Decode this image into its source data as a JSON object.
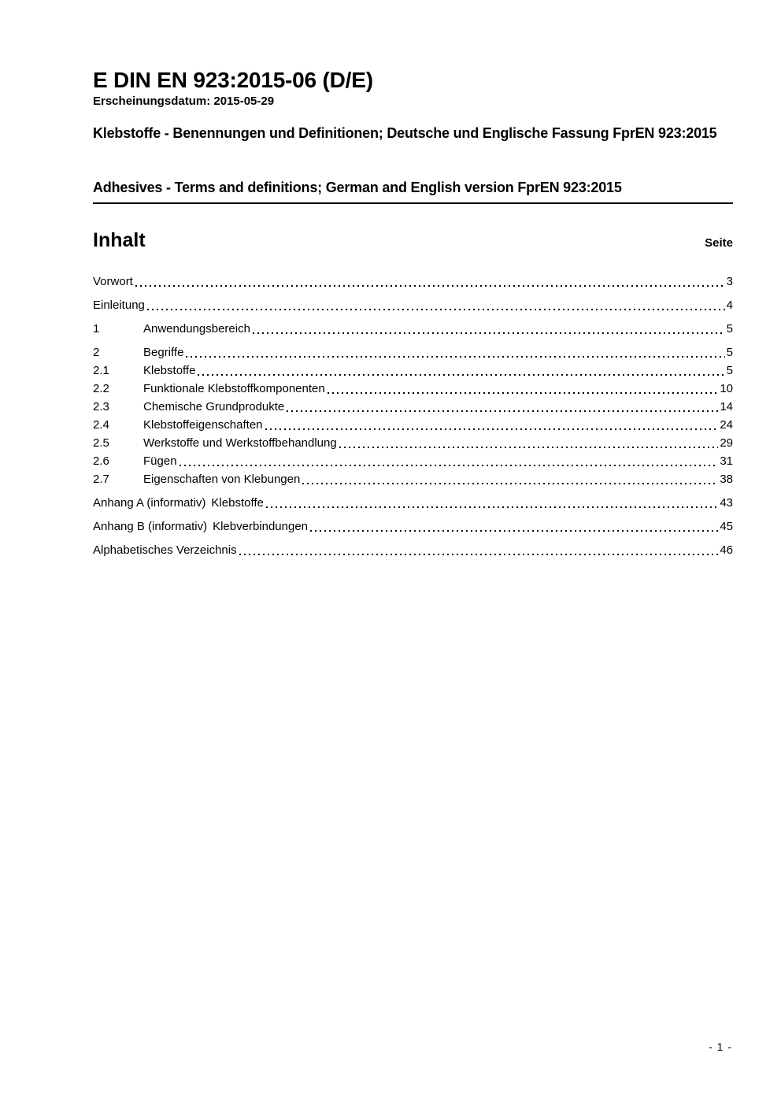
{
  "colors": {
    "text": "#000000",
    "background": "#ffffff",
    "rule": "#000000"
  },
  "header": {
    "doc_code": "E DIN EN 923:2015-06 (D/E)",
    "release_date": "Erscheinungsdatum: 2015-05-29",
    "title_de": "Klebstoffe - Benennungen und Definitionen; Deutsche und Englische Fassung FprEN 923:2015",
    "title_en": "Adhesives - Terms and definitions; German and English version FprEN 923:2015"
  },
  "toc": {
    "heading": "Inhalt",
    "page_col_label": "Seite",
    "rows": [
      {
        "num": "",
        "label": "Vorwort",
        "label2": "",
        "page": "3"
      },
      {
        "num": "",
        "label": "Einleitung",
        "label2": "",
        "page": "4"
      },
      {
        "num": "1",
        "label": "Anwendungsbereich",
        "label2": "",
        "page": "5"
      },
      {
        "num": "2",
        "label": "Begriffe",
        "label2": "",
        "page": "5"
      },
      {
        "num": "2.1",
        "label": "Klebstoffe",
        "label2": "",
        "page": "5"
      },
      {
        "num": "2.2",
        "label": "Funktionale Klebstoffkomponenten",
        "label2": "",
        "page": "10"
      },
      {
        "num": "2.3",
        "label": "Chemische Grundprodukte",
        "label2": "",
        "page": "14"
      },
      {
        "num": "2.4",
        "label": "Klebstoffeigenschaften",
        "label2": "",
        "page": "24"
      },
      {
        "num": "2.5",
        "label": "Werkstoffe und Werkstoffbehandlung",
        "label2": "",
        "page": "29"
      },
      {
        "num": "2.6",
        "label": "Fügen",
        "label2": "",
        "page": "31"
      },
      {
        "num": "2.7",
        "label": "Eigenschaften von Klebungen",
        "label2": "",
        "page": "38"
      },
      {
        "num": "",
        "label": "Anhang A (informativ)",
        "label2": "Klebstoffe",
        "page": "43"
      },
      {
        "num": "",
        "label": "Anhang B (informativ)",
        "label2": "Klebverbindungen",
        "page": "45"
      },
      {
        "num": "",
        "label": "Alphabetisches Verzeichnis",
        "label2": "",
        "page": "46"
      }
    ]
  },
  "footer": {
    "page_number": "- 1 -"
  }
}
